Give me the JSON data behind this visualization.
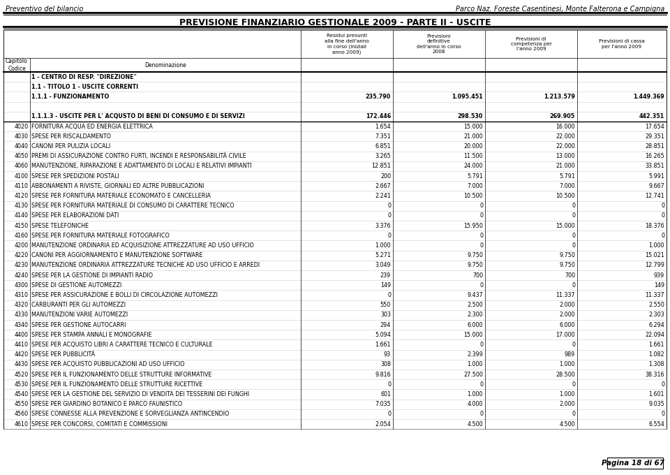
{
  "header_left": "Preventivo del bilancio",
  "header_right": "Parco Naz. Foreste Casentinesi, Monte Falterona e Campigna",
  "title": "PREVISIONE FINANZIARIO GESTIONALE 2009 - PARTE II - USCITE",
  "col_headers_top": [
    "Residui presunti\nalla fine dell'anno\nin corso (iniziali\nanno 2009)",
    "Previsioni\ndefinitive\ndell'anno in corso\n2008",
    "Previsioni di\ncompetenza per\nl'anno 2009",
    "Previsioni di cassa\nper l'anno 2009"
  ],
  "rows": [
    {
      "code": "",
      "desc": "1 - CENTRO DI RESP. \"DIREZIONE\"",
      "v1": "",
      "v2": "",
      "v3": "",
      "v4": "",
      "bold": true
    },
    {
      "code": "",
      "desc": "1.1 - TITOLO 1 - USCITE CORRENTI",
      "v1": "",
      "v2": "",
      "v3": "",
      "v4": "",
      "bold": true
    },
    {
      "code": "",
      "desc": "1.1.1 - FUNZIONAMENTO",
      "v1": "235.790",
      "v2": "1.095.451",
      "v3": "1.213.579",
      "v4": "1.449.369",
      "bold": true
    },
    {
      "code": "",
      "desc": "",
      "v1": "",
      "v2": "",
      "v3": "",
      "v4": "",
      "bold": false
    },
    {
      "code": "",
      "desc": "1.1.1.3 - USCITE PER L' ACQUSTO DI BENI DI CONSUMO E DI SERVIZI",
      "v1": "172.446",
      "v2": "298.530",
      "v3": "269.905",
      "v4": "442.351",
      "bold": true
    },
    {
      "code": "4020",
      "desc": "FORNITURA ACQUA ED ENERGIA ELETTRICA",
      "v1": "1.654",
      "v2": "15.000",
      "v3": "16.000",
      "v4": "17.654",
      "bold": false
    },
    {
      "code": "4030",
      "desc": "SPESE PER RISCALDAMENTO",
      "v1": "7.351",
      "v2": "21.000",
      "v3": "22.000",
      "v4": "29.351",
      "bold": false
    },
    {
      "code": "4040",
      "desc": "CANONI PER PULIZIA LOCALI",
      "v1": "6.851",
      "v2": "20.000",
      "v3": "22.000",
      "v4": "28.851",
      "bold": false
    },
    {
      "code": "4050",
      "desc": "PREMI DI ASSICURAZIONE CONTRO FURTI, INCENDI E RESPONSABILITÀ CIVILE",
      "v1": "3.265",
      "v2": "11.500",
      "v3": "13.000",
      "v4": "16.265",
      "bold": false
    },
    {
      "code": "4060",
      "desc": "MANUTENZIONE, RIPARAZIONE E ADATTAMENTO DI LOCALI E RELATIVI IMPIANTI",
      "v1": "12.851",
      "v2": "24.000",
      "v3": "21.000",
      "v4": "33.851",
      "bold": false
    },
    {
      "code": "4100",
      "desc": "SPESE PER SPEDIZIONI POSTALI",
      "v1": "200",
      "v2": "5.791",
      "v3": "5.791",
      "v4": "5.991",
      "bold": false
    },
    {
      "code": "4110",
      "desc": "ABBONAMENTI A RIVISTE, GIORNALI ED ALTRE PUBBLICAZIONI",
      "v1": "2.667",
      "v2": "7.000",
      "v3": "7.000",
      "v4": "9.667",
      "bold": false
    },
    {
      "code": "4120",
      "desc": "SPESE PER FORNITURA MATERIALE ECONOMATO E CANCELLERIA",
      "v1": "2.241",
      "v2": "10.500",
      "v3": "10.500",
      "v4": "12.741",
      "bold": false
    },
    {
      "code": "4130",
      "desc": "SPESE PER FORNITURA MATERIALE DI CONSUMO DI CARATTERE TECNICO",
      "v1": "0",
      "v2": "0",
      "v3": "0",
      "v4": "0",
      "bold": false
    },
    {
      "code": "4140",
      "desc": "SPESE PER ELABORAZIONI DATI",
      "v1": "0",
      "v2": "0",
      "v3": "0",
      "v4": "0",
      "bold": false
    },
    {
      "code": "4150",
      "desc": "SPESE TELEFONICHE",
      "v1": "3.376",
      "v2": "15.950",
      "v3": "15.000",
      "v4": "18.376",
      "bold": false
    },
    {
      "code": "4160",
      "desc": "SPESE PER FORNITURA MATERIALE FOTOGRAFICO",
      "v1": "0",
      "v2": "0",
      "v3": "0",
      "v4": "0",
      "bold": false
    },
    {
      "code": "4200",
      "desc": "MANUTENZIONE ORDINARIA ED ACQUISIZIONE ATTREZZATURE AD USO UFFICIO",
      "v1": "1.000",
      "v2": "0",
      "v3": "0",
      "v4": "1.000",
      "bold": false
    },
    {
      "code": "4220",
      "desc": "CANONI PER AGGIORNAMENTO E MANUTENZIONE SOFTWARE",
      "v1": "5.271",
      "v2": "9.750",
      "v3": "9.750",
      "v4": "15.021",
      "bold": false
    },
    {
      "code": "4230",
      "desc": "MANUTENZIONE ORDINARIA ATTREZZATURE TECNICHE AD USO UFFICIO E ARREDI",
      "v1": "3.049",
      "v2": "9.750",
      "v3": "9.750",
      "v4": "12.799",
      "bold": false
    },
    {
      "code": "4240",
      "desc": "SPESE PER LA GESTIONE DI IMPIANTI RADIO",
      "v1": "239",
      "v2": "700",
      "v3": "700",
      "v4": "939",
      "bold": false
    },
    {
      "code": "4300",
      "desc": "SPESE DI GESTIONE AUTOMEZZI",
      "v1": "149",
      "v2": "0",
      "v3": "0",
      "v4": "149",
      "bold": false
    },
    {
      "code": "4310",
      "desc": "SPESE PER ASSICURAZIONE E BOLLI DI CIRCOLAZIONE AUTOMEZZI",
      "v1": "0",
      "v2": "9.437",
      "v3": "11.337",
      "v4": "11.337",
      "bold": false
    },
    {
      "code": "4320",
      "desc": "CARBURANTI PER GLI AUTOMEZZI",
      "v1": "550",
      "v2": "2.500",
      "v3": "2.000",
      "v4": "2.550",
      "bold": false
    },
    {
      "code": "4330",
      "desc": "MANUTENZIONI VARIE AUTOMEZZI",
      "v1": "303",
      "v2": "2.300",
      "v3": "2.000",
      "v4": "2.303",
      "bold": false
    },
    {
      "code": "4340",
      "desc": "SPESE PER GESTIONE AUTOCARRI",
      "v1": "294",
      "v2": "6.000",
      "v3": "6.000",
      "v4": "6.294",
      "bold": false
    },
    {
      "code": "4400",
      "desc": "SPESE PER STAMPA ANNALI E MONOGRAFIE",
      "v1": "5.094",
      "v2": "15.000",
      "v3": "17.000",
      "v4": "22.094",
      "bold": false
    },
    {
      "code": "4410",
      "desc": "SPESE PER ACQUISTO LIBRI A CARATTERE TECNICO E CULTURALE",
      "v1": "1.661",
      "v2": "0",
      "v3": "0",
      "v4": "1.661",
      "bold": false
    },
    {
      "code": "4420",
      "desc": "SPESE PER PUBBLICITÀ",
      "v1": "93",
      "v2": "2.399",
      "v3": "989",
      "v4": "1.082",
      "bold": false
    },
    {
      "code": "4430",
      "desc": "SPESE PER ACQUISTO PUBBLICAZIONI AD USO UFFICIO",
      "v1": "308",
      "v2": "1.000",
      "v3": "1.000",
      "v4": "1.308",
      "bold": false
    },
    {
      "code": "4520",
      "desc": "SPESE PER IL FUNZIONAMENTO DELLE STRUTTURE INFORMATIVE",
      "v1": "9.816",
      "v2": "27.500",
      "v3": "28.500",
      "v4": "38.316",
      "bold": false
    },
    {
      "code": "4530",
      "desc": "SPESE PER IL FUNZIONAMENTO DELLE STRUTTURE RICETTIVE",
      "v1": "0",
      "v2": "0",
      "v3": "0",
      "v4": "0",
      "bold": false
    },
    {
      "code": "4540",
      "desc": "SPESE PER LA GESTIONE DEL SERVIZIO DI VENDITA DEI TESSERINI DEI FUNGHI",
      "v1": "601",
      "v2": "1.000",
      "v3": "1.000",
      "v4": "1.601",
      "bold": false
    },
    {
      "code": "4550",
      "desc": "SPESE PER GIARDINO BOTANICO E PARCO FAUNISTICO",
      "v1": "7.035",
      "v2": "4.000",
      "v3": "2.000",
      "v4": "9.035",
      "bold": false
    },
    {
      "code": "4560",
      "desc": "SPESE CONNESSE ALLA PREVENZIONE E SORVEGLIANZA ANTINCENDIO",
      "v1": "0",
      "v2": "0",
      "v3": "0",
      "v4": "0",
      "bold": false
    },
    {
      "code": "4610",
      "desc": "SPESE PER CONCORSI, COMITATI E COMMISSIONI",
      "v1": "2.054",
      "v2": "4.500",
      "v3": "4.500",
      "v4": "6.554",
      "bold": false
    }
  ],
  "footer_text": "Pagina 18 di 67"
}
